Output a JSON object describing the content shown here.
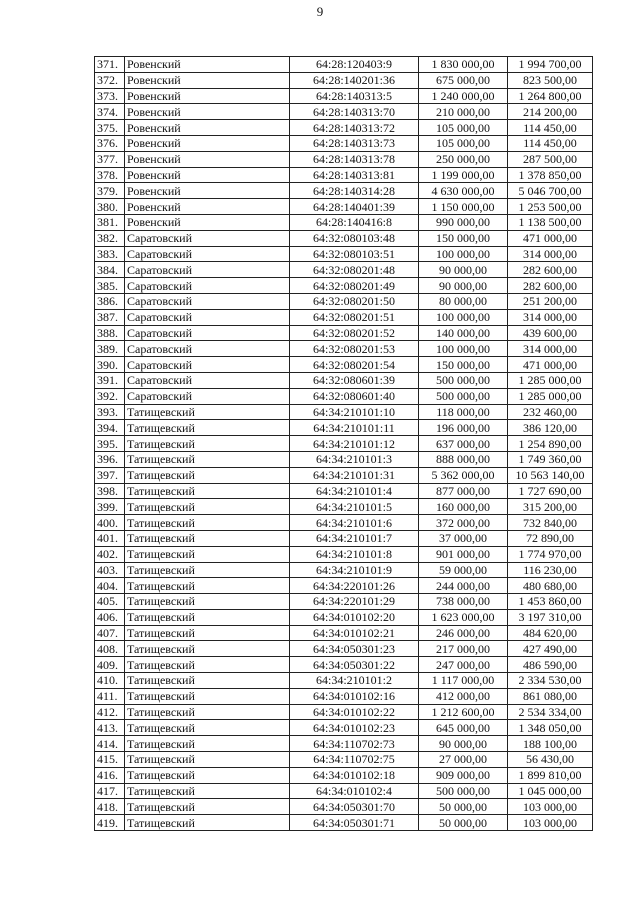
{
  "page_number": "9",
  "rows": [
    [
      "371.",
      "Ровенский",
      "64:28:120403:9",
      "1 830 000,00",
      "1 994 700,00"
    ],
    [
      "372.",
      "Ровенский",
      "64:28:140201:36",
      "675 000,00",
      "823 500,00"
    ],
    [
      "373.",
      "Ровенский",
      "64:28:140313:5",
      "1 240 000,00",
      "1 264 800,00"
    ],
    [
      "374.",
      "Ровенский",
      "64:28:140313:70",
      "210 000,00",
      "214 200,00"
    ],
    [
      "375.",
      "Ровенский",
      "64:28:140313:72",
      "105 000,00",
      "114 450,00"
    ],
    [
      "376.",
      "Ровенский",
      "64:28:140313:73",
      "105 000,00",
      "114 450,00"
    ],
    [
      "377.",
      "Ровенский",
      "64:28:140313:78",
      "250 000,00",
      "287 500,00"
    ],
    [
      "378.",
      "Ровенский",
      "64:28:140313:81",
      "1 199 000,00",
      "1 378 850,00"
    ],
    [
      "379.",
      "Ровенский",
      "64:28:140314:28",
      "4 630 000,00",
      "5 046 700,00"
    ],
    [
      "380.",
      "Ровенский",
      "64:28:140401:39",
      "1 150 000,00",
      "1 253 500,00"
    ],
    [
      "381.",
      "Ровенский",
      "64:28:140416:8",
      "990 000,00",
      "1 138 500,00"
    ],
    [
      "382.",
      "Саратовский",
      "64:32:080103:48",
      "150 000,00",
      "471 000,00"
    ],
    [
      "383.",
      "Саратовский",
      "64:32:080103:51",
      "100 000,00",
      "314 000,00"
    ],
    [
      "384.",
      "Саратовский",
      "64:32:080201:48",
      "90 000,00",
      "282 600,00"
    ],
    [
      "385.",
      "Саратовский",
      "64:32:080201:49",
      "90 000,00",
      "282 600,00"
    ],
    [
      "386.",
      "Саратовский",
      "64:32:080201:50",
      "80 000,00",
      "251 200,00"
    ],
    [
      "387.",
      "Саратовский",
      "64:32:080201:51",
      "100 000,00",
      "314 000,00"
    ],
    [
      "388.",
      "Саратовский",
      "64:32:080201:52",
      "140 000,00",
      "439 600,00"
    ],
    [
      "389.",
      "Саратовский",
      "64:32:080201:53",
      "100 000,00",
      "314 000,00"
    ],
    [
      "390.",
      "Саратовский",
      "64:32:080201:54",
      "150 000,00",
      "471 000,00"
    ],
    [
      "391.",
      "Саратовский",
      "64:32:080601:39",
      "500 000,00",
      "1 285 000,00"
    ],
    [
      "392.",
      "Саратовский",
      "64:32:080601:40",
      "500 000,00",
      "1 285 000,00"
    ],
    [
      "393.",
      "Татищевский",
      "64:34:210101:10",
      "118 000,00",
      "232 460,00"
    ],
    [
      "394.",
      "Татищевский",
      "64:34:210101:11",
      "196 000,00",
      "386 120,00"
    ],
    [
      "395.",
      "Татищевский",
      "64:34:210101:12",
      "637 000,00",
      "1 254 890,00"
    ],
    [
      "396.",
      "Татищевский",
      "64:34:210101:3",
      "888 000,00",
      "1 749 360,00"
    ],
    [
      "397.",
      "Татищевский",
      "64:34:210101:31",
      "5 362 000,00",
      "10 563 140,00"
    ],
    [
      "398.",
      "Татищевский",
      "64:34:210101:4",
      "877 000,00",
      "1 727 690,00"
    ],
    [
      "399.",
      "Татищевский",
      "64:34:210101:5",
      "160 000,00",
      "315 200,00"
    ],
    [
      "400.",
      "Татищевский",
      "64:34:210101:6",
      "372 000,00",
      "732 840,00"
    ],
    [
      "401.",
      "Татищевский",
      "64:34:210101:7",
      "37 000,00",
      "72 890,00"
    ],
    [
      "402.",
      "Татищевский",
      "64:34:210101:8",
      "901 000,00",
      "1 774 970,00"
    ],
    [
      "403.",
      "Татищевский",
      "64:34:210101:9",
      "59 000,00",
      "116 230,00"
    ],
    [
      "404.",
      "Татищевский",
      "64:34:220101:26",
      "244 000,00",
      "480 680,00"
    ],
    [
      "405.",
      "Татищевский",
      "64:34:220101:29",
      "738 000,00",
      "1 453 860,00"
    ],
    [
      "406.",
      "Татищевский",
      "64:34:010102:20",
      "1 623 000,00",
      "3 197 310,00"
    ],
    [
      "407.",
      "Татищевский",
      "64:34:010102:21",
      "246 000,00",
      "484 620,00"
    ],
    [
      "408.",
      "Татищевский",
      "64:34:050301:23",
      "217 000,00",
      "427 490,00"
    ],
    [
      "409.",
      "Татищевский",
      "64:34:050301:22",
      "247 000,00",
      "486 590,00"
    ],
    [
      "410.",
      "Татищевский",
      "64:34:210101:2",
      "1 117 000,00",
      "2 334 530,00"
    ],
    [
      "411.",
      "Татищевский",
      "64:34:010102:16",
      "412 000,00",
      "861 080,00"
    ],
    [
      "412.",
      "Татищевский",
      "64:34:010102:22",
      "1 212 600,00",
      "2 534 334,00"
    ],
    [
      "413.",
      "Татищевский",
      "64:34:010102:23",
      "645 000,00",
      "1 348 050,00"
    ],
    [
      "414.",
      "Татищевский",
      "64:34:110702:73",
      "90 000,00",
      "188 100,00"
    ],
    [
      "415.",
      "Татищевский",
      "64:34:110702:75",
      "27 000,00",
      "56 430,00"
    ],
    [
      "416.",
      "Татищевский",
      "64:34:010102:18",
      "909 000,00",
      "1 899 810,00"
    ],
    [
      "417.",
      "Татищевский",
      "64:34:010102:4",
      "500 000,00",
      "1 045 000,00"
    ],
    [
      "418.",
      "Татищевский",
      "64:34:050301:70",
      "50 000,00",
      "103 000,00"
    ],
    [
      "419.",
      "Татищевский",
      "64:34:050301:71",
      "50 000,00",
      "103 000,00"
    ]
  ]
}
